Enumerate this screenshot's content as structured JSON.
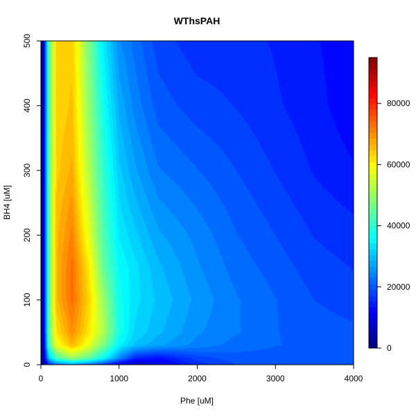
{
  "chart_data": {
    "type": "heatmap",
    "title": "WThsPAH",
    "xlabel": "Phe [uM]",
    "ylabel": "BH4 [uM]",
    "xlim": [
      0,
      4000
    ],
    "ylim": [
      0,
      500
    ],
    "x_ticks": [
      0,
      1000,
      2000,
      3000,
      4000
    ],
    "y_ticks": [
      0,
      100,
      200,
      300,
      400,
      500
    ],
    "x_tick_labels": [
      "0",
      "1000",
      "2000",
      "3000",
      "4000"
    ],
    "y_tick_labels": [
      "0",
      "100",
      "200",
      "300",
      "400",
      "500"
    ],
    "colorbar": {
      "range": [
        0,
        95000
      ],
      "ticks": [
        0,
        20000,
        40000,
        60000,
        80000
      ],
      "tick_labels": [
        "0",
        "20000",
        "40000",
        "60000",
        "80000"
      ],
      "colormap": "jet",
      "levels": 50
    },
    "surface_samples": {
      "description_of_grid": "approximate values read from the filled contours",
      "phe": [
        0,
        30,
        100,
        200,
        400,
        600,
        800,
        1000,
        1200,
        1500,
        2000,
        2500,
        3000,
        3500,
        4000
      ],
      "bh4": [
        0,
        10,
        30,
        50,
        100,
        150,
        200,
        300,
        400,
        500
      ],
      "value_rows_by_bh4": [
        [
          0,
          1000,
          15000,
          22000,
          26000,
          22000,
          17000,
          9000,
          5000,
          9000,
          16000,
          19000,
          20000,
          20000,
          20000
        ],
        [
          0,
          3000,
          30000,
          42000,
          50000,
          45000,
          36000,
          25000,
          15000,
          13000,
          18000,
          20000,
          20000,
          20000,
          20000
        ],
        [
          0,
          5000,
          42000,
          58000,
          66000,
          58000,
          47000,
          35000,
          30000,
          27000,
          24000,
          22000,
          21000,
          20500,
          20000
        ],
        [
          0,
          6000,
          44000,
          62000,
          70000,
          62000,
          52000,
          38000,
          32000,
          29000,
          25000,
          23000,
          21000,
          20000,
          19500
        ],
        [
          0,
          6000,
          44000,
          66000,
          73000,
          64000,
          50000,
          37000,
          33000,
          30000,
          26000,
          23000,
          21000,
          19000,
          18000
        ],
        [
          0,
          6000,
          44000,
          66000,
          73000,
          62000,
          45000,
          36000,
          33000,
          29000,
          25000,
          22000,
          20000,
          18000,
          17000
        ],
        [
          0,
          6000,
          44000,
          66000,
          71000,
          58000,
          43000,
          34000,
          31000,
          27000,
          24000,
          21000,
          19000,
          17000,
          16000
        ],
        [
          0,
          6000,
          44000,
          64000,
          67000,
          53000,
          40000,
          31000,
          27000,
          23000,
          21000,
          19000,
          17000,
          15000,
          13500
        ],
        [
          0,
          6000,
          44000,
          63000,
          65000,
          50000,
          37000,
          28000,
          24000,
          20000,
          18000,
          17000,
          15500,
          14000,
          12000
        ],
        [
          0,
          6000,
          44000,
          63000,
          64000,
          48000,
          34000,
          25000,
          22000,
          18000,
          16000,
          16000,
          15000,
          13500,
          12000
        ]
      ]
    }
  }
}
